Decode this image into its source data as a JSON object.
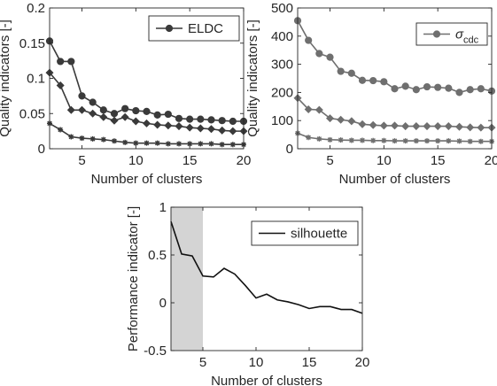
{
  "chart_data": [
    {
      "type": "line",
      "xlabel": "Number of clusters",
      "ylabel": "Quality indicators [-]",
      "xlim": [
        2,
        20
      ],
      "ylim": [
        0,
        0.2
      ],
      "xticks": [
        5,
        10,
        15,
        20
      ],
      "yticks": [
        0,
        0.05,
        0.1,
        0.15,
        0.2
      ],
      "ytick_labels": [
        "0",
        "0.05",
        "0.1",
        "0.15",
        "0.2"
      ],
      "grid": false,
      "legend": {
        "position": "top-right",
        "entries": [
          {
            "label": "ELDC",
            "marker": "circle"
          }
        ]
      },
      "series": [
        {
          "name": "ELDC",
          "marker": "circle",
          "color": "#3a3a3a",
          "x": [
            2,
            3,
            4,
            5,
            6,
            7,
            8,
            9,
            10,
            11,
            12,
            13,
            14,
            15,
            16,
            17,
            18,
            19,
            20
          ],
          "values": [
            0.153,
            0.124,
            0.124,
            0.075,
            0.066,
            0.055,
            0.05,
            0.057,
            0.054,
            0.053,
            0.048,
            0.049,
            0.043,
            0.042,
            0.042,
            0.041,
            0.04,
            0.039,
            0.039
          ]
        },
        {
          "marker": "diamond",
          "color": "#3a3a3a",
          "x": [
            2,
            3,
            4,
            5,
            6,
            7,
            8,
            9,
            10,
            11,
            12,
            13,
            14,
            15,
            16,
            17,
            18,
            19,
            20
          ],
          "values": [
            0.108,
            0.09,
            0.055,
            0.055,
            0.05,
            0.045,
            0.04,
            0.045,
            0.039,
            0.036,
            0.034,
            0.033,
            0.032,
            0.03,
            0.029,
            0.028,
            0.026,
            0.025,
            0.025
          ]
        },
        {
          "marker": "star",
          "color": "#3a3a3a",
          "x": [
            2,
            3,
            4,
            5,
            6,
            7,
            8,
            9,
            10,
            11,
            12,
            13,
            14,
            15,
            16,
            17,
            18,
            19,
            20
          ],
          "values": [
            0.036,
            0.027,
            0.017,
            0.015,
            0.014,
            0.013,
            0.011,
            0.009,
            0.008,
            0.008,
            0.008,
            0.007,
            0.007,
            0.007,
            0.007,
            0.007,
            0.006,
            0.006,
            0.006
          ]
        }
      ]
    },
    {
      "type": "line",
      "xlabel": "Number of clusters",
      "ylabel": "Quality indicators [-]",
      "xlim": [
        2,
        20
      ],
      "ylim": [
        0,
        500
      ],
      "xticks": [
        5,
        10,
        15,
        20
      ],
      "yticks": [
        0,
        100,
        200,
        300,
        400,
        500
      ],
      "ytick_labels": [
        "0",
        "100",
        "200",
        "300",
        "400",
        "500"
      ],
      "grid": false,
      "legend": {
        "position": "top-right",
        "entries": [
          {
            "label": "σ",
            "subscript": "cdc",
            "marker": "circle"
          }
        ]
      },
      "series": [
        {
          "name": "σcdc",
          "marker": "circle",
          "color": "#6f6f6f",
          "x": [
            2,
            3,
            4,
            5,
            6,
            7,
            8,
            9,
            10,
            11,
            12,
            13,
            14,
            15,
            16,
            17,
            18,
            19,
            20
          ],
          "values": [
            455,
            385,
            338,
            325,
            275,
            268,
            243,
            242,
            238,
            213,
            222,
            210,
            220,
            218,
            215,
            200,
            210,
            213,
            205
          ]
        },
        {
          "marker": "diamond",
          "color": "#6f6f6f",
          "x": [
            2,
            3,
            4,
            5,
            6,
            7,
            8,
            9,
            10,
            11,
            12,
            13,
            14,
            15,
            16,
            17,
            18,
            19,
            20
          ],
          "values": [
            180,
            140,
            138,
            108,
            103,
            98,
            87,
            84,
            82,
            82,
            80,
            80,
            80,
            80,
            80,
            78,
            76,
            75,
            75
          ]
        },
        {
          "marker": "star",
          "color": "#6f6f6f",
          "x": [
            2,
            3,
            4,
            5,
            6,
            7,
            8,
            9,
            10,
            11,
            12,
            13,
            14,
            15,
            16,
            17,
            18,
            19,
            20
          ],
          "values": [
            55,
            40,
            35,
            32,
            31,
            30,
            30,
            29,
            29,
            28,
            28,
            28,
            28,
            28,
            28,
            27,
            26,
            26,
            26
          ]
        }
      ]
    },
    {
      "type": "line",
      "xlabel": "Number of clusters",
      "ylabel": "Performance indicator [-]",
      "xlim": [
        2,
        20
      ],
      "ylim": [
        -0.5,
        1
      ],
      "xticks": [
        5,
        10,
        15,
        20
      ],
      "yticks": [
        -0.5,
        0,
        0.5,
        1
      ],
      "ytick_labels": [
        "-0.5",
        "0",
        "0.5",
        "1"
      ],
      "grid": false,
      "shaded_region": {
        "x_from": 2,
        "x_to": 5,
        "color": "#d4d4d4"
      },
      "legend": {
        "position": "top-right",
        "entries": [
          {
            "label": "silhouette",
            "marker": "none"
          }
        ]
      },
      "series": [
        {
          "name": "silhouette",
          "marker": "none",
          "color": "#111111",
          "x": [
            2,
            3,
            4,
            5,
            6,
            7,
            8,
            9,
            10,
            11,
            12,
            13,
            14,
            15,
            16,
            17,
            18,
            19,
            20
          ],
          "values": [
            0.85,
            0.51,
            0.49,
            0.28,
            0.27,
            0.36,
            0.3,
            0.18,
            0.05,
            0.09,
            0.03,
            0.01,
            -0.02,
            -0.06,
            -0.04,
            -0.04,
            -0.07,
            -0.07,
            -0.11
          ]
        }
      ]
    }
  ]
}
